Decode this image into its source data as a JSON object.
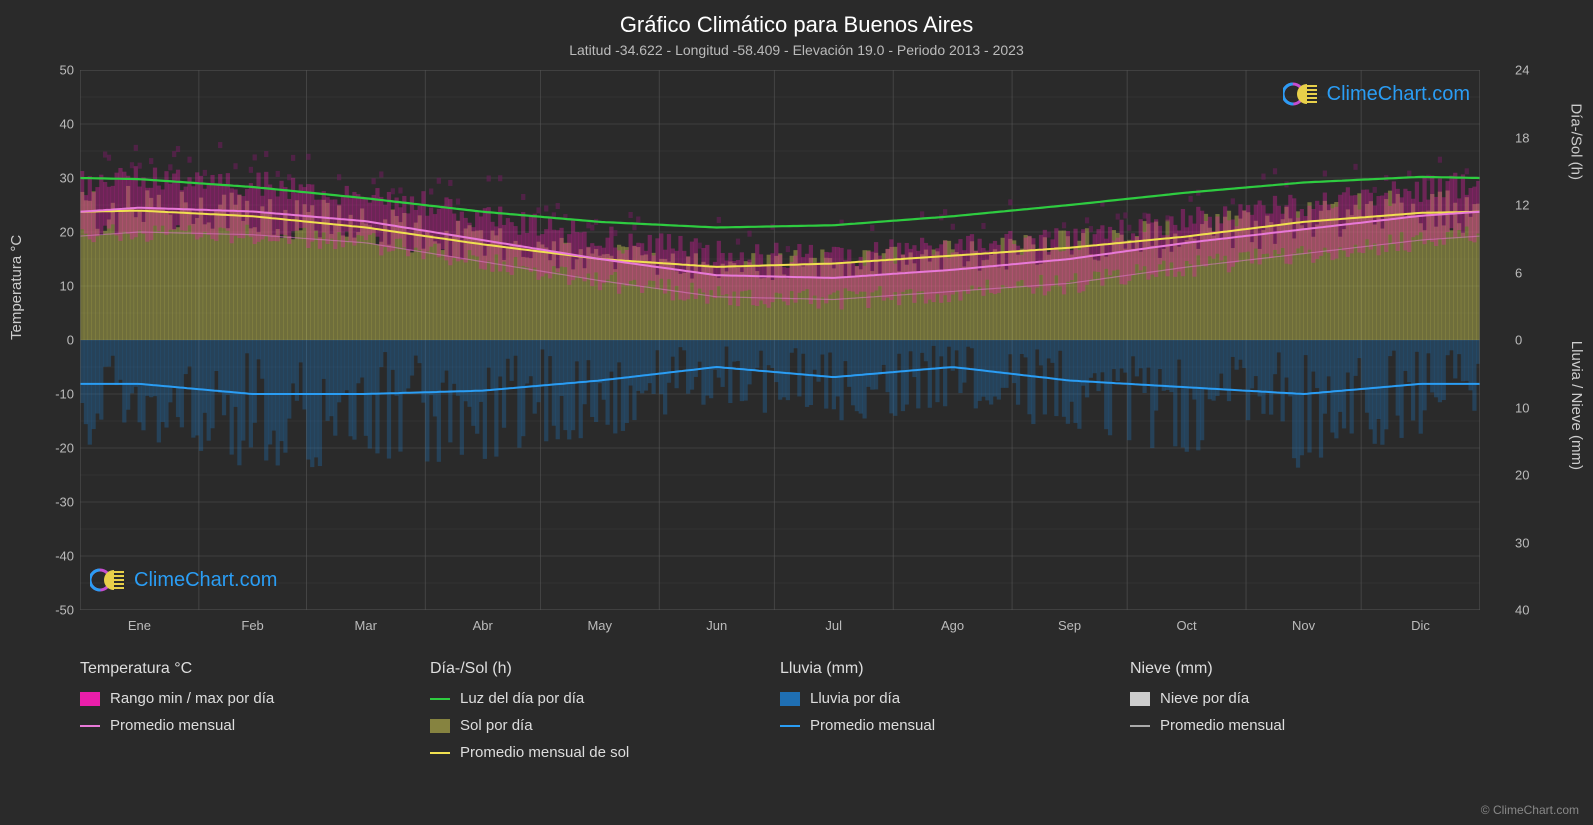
{
  "title": "Gráfico Climático para Buenos Aires",
  "subtitle": "Latitud -34.622 - Longitud -58.409 - Elevación 19.0 - Periodo 2013 - 2023",
  "logo_text": "ClimeChart.com",
  "copyright": "© ClimeChart.com",
  "axes": {
    "left_label": "Temperatura °C",
    "right_label_top": "Día-/Sol (h)",
    "right_label_bot": "Lluvia / Nieve (mm)",
    "left_ticks": [
      50,
      40,
      30,
      20,
      10,
      0,
      -10,
      -20,
      -30,
      -40,
      -50
    ],
    "right_ticks_top": [
      24,
      18,
      12,
      6,
      0
    ],
    "right_ticks_bot": [
      10,
      20,
      30,
      40
    ],
    "months": [
      "Ene",
      "Feb",
      "Mar",
      "Abr",
      "May",
      "Jun",
      "Jul",
      "Ago",
      "Sep",
      "Oct",
      "Nov",
      "Dic"
    ]
  },
  "colors": {
    "bg": "#2a2a2a",
    "grid": "#555555",
    "grid_minor": "#3f3f3f",
    "title": "#ffffff",
    "subtitle": "#bbbbbb",
    "text": "#cccccc",
    "temp_range": "#e91eaa",
    "temp_avg": "#e879d8",
    "daylight": "#2ecc40",
    "sun_fill": "#c4c050",
    "sun_avg": "#f0e050",
    "rain_fill": "#1f6fb3",
    "rain_avg": "#2a9df4",
    "snow_fill": "#cccccc",
    "snow_avg": "#aaaaaa",
    "logo_blue": "#2a9df4"
  },
  "chart": {
    "type": "climate-composite",
    "x_count": 365,
    "temp_y_range": [
      -50,
      50
    ],
    "right_top_range_h": [
      0,
      24
    ],
    "right_bot_range_mm": [
      0,
      40
    ],
    "daylight_h_monthly": [
      14.3,
      13.6,
      12.6,
      11.4,
      10.5,
      10.0,
      10.2,
      11.0,
      12.0,
      13.1,
      14.0,
      14.5
    ],
    "sun_h_monthly": [
      11.5,
      11.0,
      10.0,
      8.5,
      7.2,
      6.5,
      6.8,
      7.5,
      8.2,
      9.2,
      10.5,
      11.3
    ],
    "temp_avg_monthly": [
      24.5,
      23.8,
      22.0,
      18.5,
      15.0,
      12.0,
      11.5,
      13.0,
      15.0,
      18.0,
      20.5,
      23.0
    ],
    "temp_min_monthly": [
      20.0,
      19.5,
      18.0,
      14.5,
      11.0,
      8.0,
      7.5,
      9.0,
      10.5,
      13.5,
      16.0,
      18.5
    ],
    "temp_max_monthly": [
      30.0,
      29.0,
      27.0,
      23.0,
      19.0,
      16.0,
      15.5,
      17.0,
      19.0,
      22.0,
      25.0,
      28.0
    ],
    "rain_mm_monthly": [
      6.5,
      8.0,
      8.0,
      7.5,
      6.0,
      4.0,
      5.5,
      4.0,
      6.0,
      7.0,
      8.0,
      6.5
    ],
    "snow_mm_monthly": [
      0,
      0,
      0,
      0,
      0,
      0,
      0,
      0,
      0,
      0,
      0,
      0
    ]
  },
  "legend": {
    "temp_header": "Temperatura °C",
    "temp_range": "Rango min / max por día",
    "temp_avg": "Promedio mensual",
    "daysun_header": "Día-/Sol (h)",
    "daylight": "Luz del día por día",
    "sun": "Sol por día",
    "sun_avg": "Promedio mensual de sol",
    "rain_header": "Lluvia (mm)",
    "rain_daily": "Lluvia por día",
    "rain_avg": "Promedio mensual",
    "snow_header": "Nieve (mm)",
    "snow_daily": "Nieve por día",
    "snow_avg": "Promedio mensual"
  }
}
